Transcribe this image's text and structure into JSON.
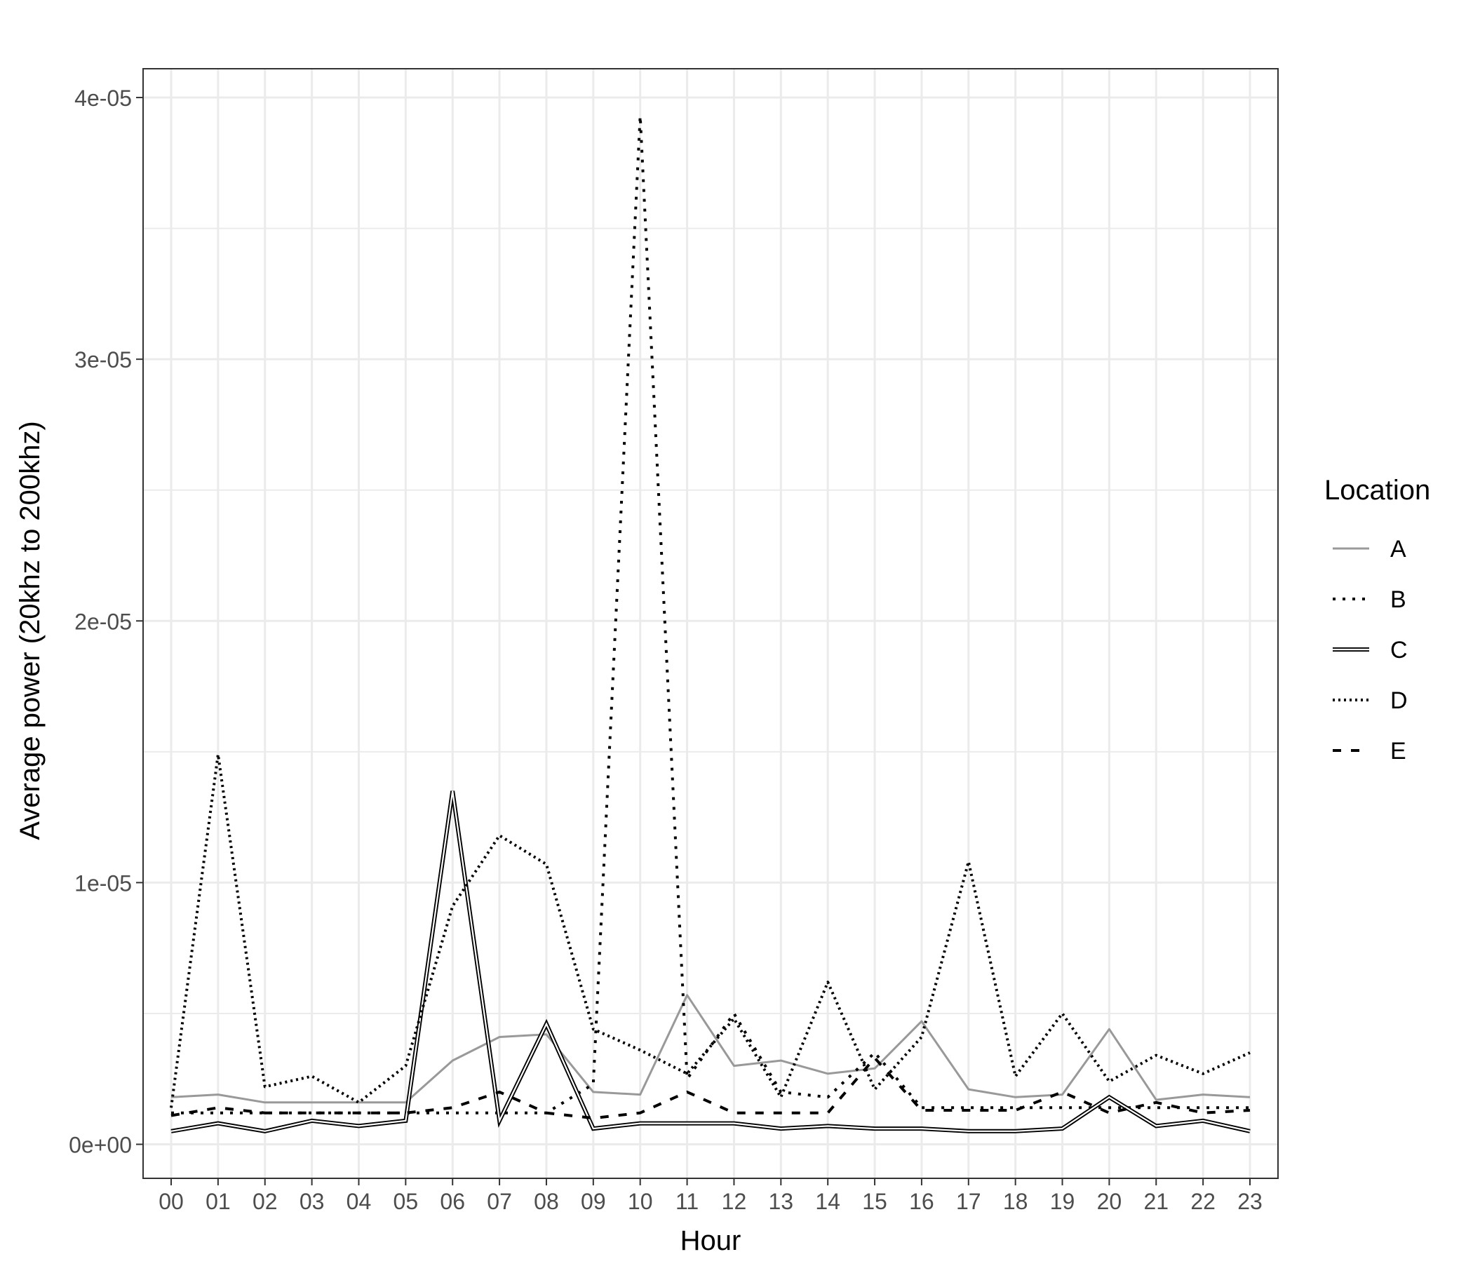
{
  "chart_data": {
    "type": "line",
    "title": "",
    "xlabel": "Hour",
    "ylabel": "Average power (20khz to 200khz)",
    "categories": [
      "00",
      "01",
      "02",
      "03",
      "04",
      "05",
      "06",
      "07",
      "08",
      "09",
      "10",
      "11",
      "12",
      "13",
      "14",
      "15",
      "16",
      "17",
      "18",
      "19",
      "20",
      "21",
      "22",
      "23"
    ],
    "ylim": [
      -1.3e-06,
      4.11e-05
    ],
    "yticks": [
      0,
      1e-05,
      2e-05,
      3e-05,
      4e-05
    ],
    "ytick_labels": [
      "0e+00",
      "1e-05",
      "2e-05",
      "3e-05",
      "4e-05"
    ],
    "grid": true,
    "legend": {
      "title": "Location",
      "position": "right"
    },
    "series": [
      {
        "name": "A",
        "color": "#999999",
        "dash": "solid",
        "values": [
          1.8e-06,
          1.9e-06,
          1.6e-06,
          1.6e-06,
          1.6e-06,
          1.6e-06,
          3.2e-06,
          4.1e-06,
          4.2e-06,
          2e-06,
          1.9e-06,
          5.7e-06,
          3e-06,
          3.2e-06,
          2.7e-06,
          2.9e-06,
          4.7e-06,
          2.1e-06,
          1.8e-06,
          1.9e-06,
          4.4e-06,
          1.7e-06,
          1.9e-06,
          1.8e-06
        ]
      },
      {
        "name": "B",
        "color": "#000000",
        "dash": "B",
        "values": [
          1.2e-06,
          1.2e-06,
          1.2e-06,
          1.2e-06,
          1.2e-06,
          1.2e-06,
          1.2e-06,
          1.2e-06,
          1.2e-06,
          2.3e-06,
          3.93e-05,
          2.5e-06,
          5e-06,
          2e-06,
          1.8e-06,
          3.5e-06,
          1.4e-06,
          1.4e-06,
          1.4e-06,
          1.4e-06,
          1.4e-06,
          1.4e-06,
          1.4e-06,
          1.4e-06
        ]
      },
      {
        "name": "C",
        "color": "#000000",
        "dash": "double",
        "values": [
          5e-07,
          8e-07,
          5e-07,
          9e-07,
          7e-07,
          9e-07,
          1.35e-05,
          9e-07,
          4.6e-06,
          6e-07,
          8e-07,
          8e-07,
          8e-07,
          6e-07,
          7e-07,
          6e-07,
          6e-07,
          5e-07,
          5e-07,
          6e-07,
          1.8e-06,
          7e-07,
          9e-07,
          5e-07
        ]
      },
      {
        "name": "D",
        "color": "#000000",
        "dash": "D",
        "values": [
          1.4e-06,
          1.49e-05,
          2.2e-06,
          2.6e-06,
          1.6e-06,
          3e-06,
          9.1e-06,
          1.18e-05,
          1.07e-05,
          4.4e-06,
          3.6e-06,
          2.7e-06,
          4.8e-06,
          1.8e-06,
          6.2e-06,
          2.1e-06,
          4.1e-06,
          1.08e-05,
          2.6e-06,
          5e-06,
          2.4e-06,
          3.4e-06,
          2.7e-06,
          3.5e-06
        ]
      },
      {
        "name": "E",
        "color": "#000000",
        "dash": "E",
        "values": [
          1.1e-06,
          1.4e-06,
          1.2e-06,
          1.2e-06,
          1.2e-06,
          1.2e-06,
          1.4e-06,
          2e-06,
          1.2e-06,
          1e-06,
          1.2e-06,
          2e-06,
          1.2e-06,
          1.2e-06,
          1.2e-06,
          3.3e-06,
          1.3e-06,
          1.3e-06,
          1.3e-06,
          2e-06,
          1.2e-06,
          1.6e-06,
          1.2e-06,
          1.3e-06
        ]
      }
    ]
  }
}
